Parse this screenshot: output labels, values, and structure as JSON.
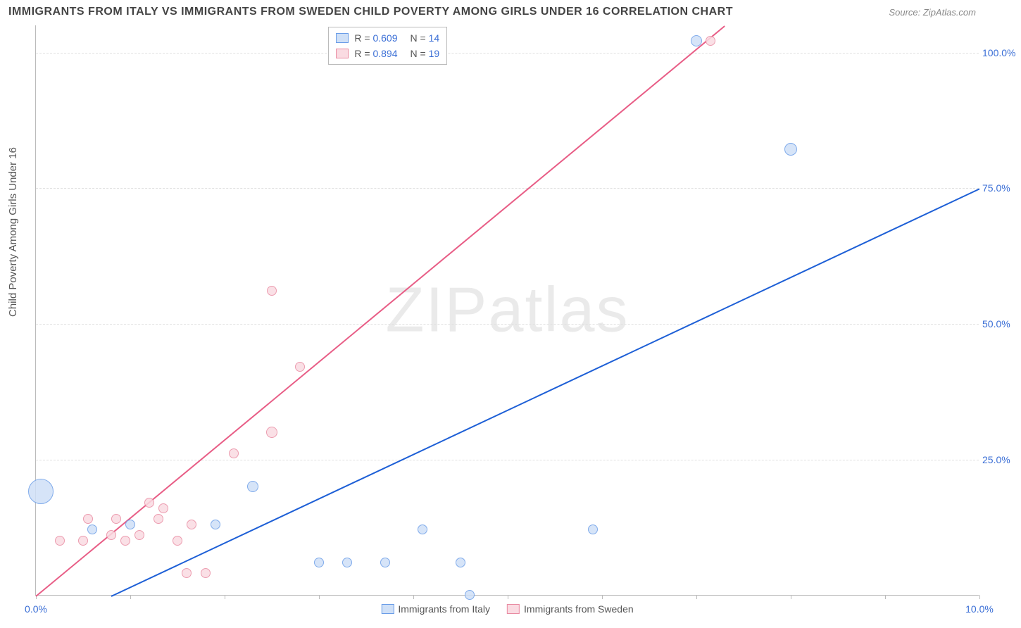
{
  "title": "IMMIGRANTS FROM ITALY VS IMMIGRANTS FROM SWEDEN CHILD POVERTY AMONG GIRLS UNDER 16 CORRELATION CHART",
  "source_label": "Source: ",
  "source_value": "ZipAtlas.com",
  "ylabel": "Child Poverty Among Girls Under 16",
  "watermark": "ZIPatlas",
  "chart": {
    "type": "scatter",
    "xlim": [
      0,
      10
    ],
    "ylim": [
      0,
      105
    ],
    "y_ticks": [
      25,
      50,
      75,
      100
    ],
    "y_tick_labels": [
      "25.0%",
      "50.0%",
      "75.0%",
      "100.0%"
    ],
    "x_ticks": [
      0,
      1,
      2,
      3,
      4,
      5,
      6,
      7,
      8,
      9,
      10
    ],
    "x_tick_labels": [
      "0.0%",
      "",
      "",
      "",
      "",
      "",
      "",
      "",
      "",
      "",
      "10.0%"
    ],
    "background_color": "#ffffff",
    "grid_color": "#e0e0e0",
    "axis_color": "#bbbbbb",
    "tick_label_color": "#3b6fd6",
    "title_color": "#444444",
    "title_fontsize": 16,
    "label_fontsize": 15,
    "tick_fontsize": 14
  },
  "series": [
    {
      "name": "Immigrants from Italy",
      "fill": "#cfe0f7",
      "stroke": "#6a9de8",
      "line_color": "#1d5fd6",
      "R": "0.609",
      "N": "14",
      "regression": {
        "x1": 0.8,
        "y1": 0,
        "x2": 10.0,
        "y2": 75
      },
      "points": [
        {
          "x": 0.05,
          "y": 19,
          "r": 18
        },
        {
          "x": 0.6,
          "y": 12,
          "r": 7
        },
        {
          "x": 1.0,
          "y": 13,
          "r": 7
        },
        {
          "x": 1.9,
          "y": 13,
          "r": 7
        },
        {
          "x": 2.3,
          "y": 20,
          "r": 8
        },
        {
          "x": 3.0,
          "y": 6,
          "r": 7
        },
        {
          "x": 3.3,
          "y": 6,
          "r": 7
        },
        {
          "x": 3.7,
          "y": 6,
          "r": 7
        },
        {
          "x": 4.1,
          "y": 12,
          "r": 7
        },
        {
          "x": 4.5,
          "y": 6,
          "r": 7
        },
        {
          "x": 4.6,
          "y": 0,
          "r": 7
        },
        {
          "x": 5.9,
          "y": 12,
          "r": 7
        },
        {
          "x": 7.0,
          "y": 102,
          "r": 8
        },
        {
          "x": 8.0,
          "y": 82,
          "r": 9
        }
      ]
    },
    {
      "name": "Immigrants from Sweden",
      "fill": "#fadbe2",
      "stroke": "#e98ba2",
      "line_color": "#e85d86",
      "R": "0.894",
      "N": "19",
      "regression": {
        "x1": 0.0,
        "y1": 0,
        "x2": 7.3,
        "y2": 105
      },
      "points": [
        {
          "x": 0.25,
          "y": 10,
          "r": 7
        },
        {
          "x": 0.5,
          "y": 10,
          "r": 7
        },
        {
          "x": 0.55,
          "y": 14,
          "r": 7
        },
        {
          "x": 0.8,
          "y": 11,
          "r": 7
        },
        {
          "x": 0.85,
          "y": 14,
          "r": 7
        },
        {
          "x": 0.95,
          "y": 10,
          "r": 7
        },
        {
          "x": 1.1,
          "y": 11,
          "r": 7
        },
        {
          "x": 1.2,
          "y": 17,
          "r": 7
        },
        {
          "x": 1.3,
          "y": 14,
          "r": 7
        },
        {
          "x": 1.35,
          "y": 16,
          "r": 7
        },
        {
          "x": 1.5,
          "y": 10,
          "r": 7
        },
        {
          "x": 1.6,
          "y": 4,
          "r": 7
        },
        {
          "x": 1.65,
          "y": 13,
          "r": 7
        },
        {
          "x": 1.8,
          "y": 4,
          "r": 7
        },
        {
          "x": 2.1,
          "y": 26,
          "r": 7
        },
        {
          "x": 2.5,
          "y": 30,
          "r": 8
        },
        {
          "x": 2.5,
          "y": 56,
          "r": 7
        },
        {
          "x": 2.8,
          "y": 42,
          "r": 7
        },
        {
          "x": 7.15,
          "y": 102,
          "r": 7
        }
      ]
    }
  ],
  "legend_top": {
    "r_label": "R =",
    "n_label": "N ="
  },
  "legend_bottom": [
    {
      "label": "Immigrants from Italy",
      "fill": "#cfe0f7",
      "stroke": "#6a9de8"
    },
    {
      "label": "Immigrants from Sweden",
      "fill": "#fadbe2",
      "stroke": "#e98ba2"
    }
  ]
}
